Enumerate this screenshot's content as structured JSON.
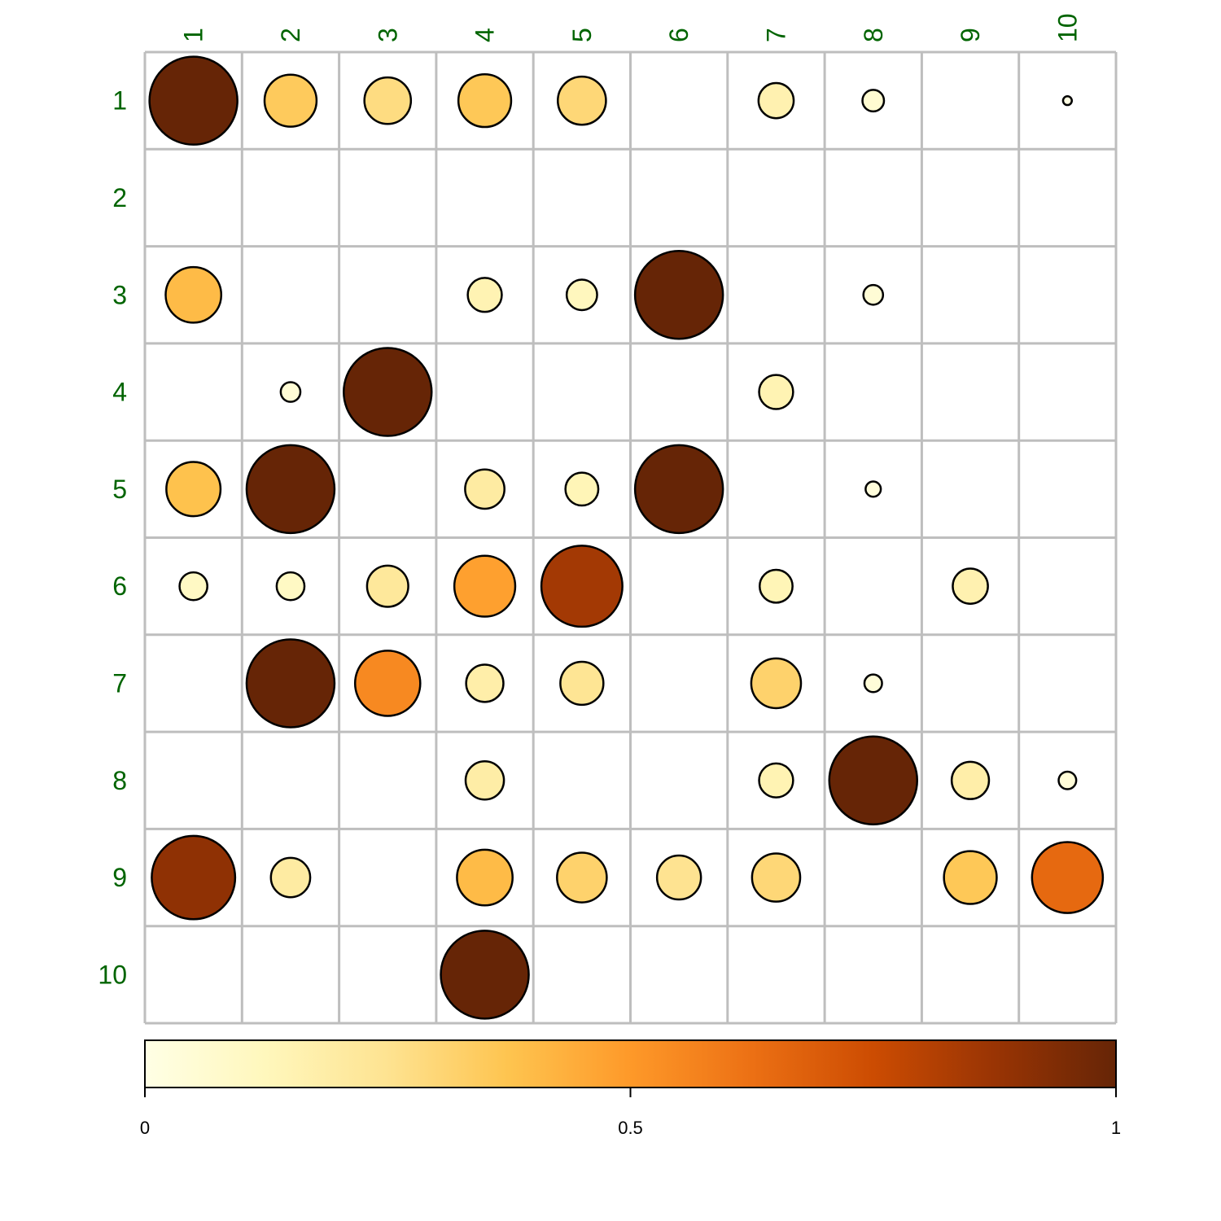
{
  "chart_data": {
    "type": "heatmap",
    "title": "",
    "xlabel": "",
    "ylabel": "",
    "rows": [
      "1",
      "2",
      "3",
      "4",
      "5",
      "6",
      "7",
      "8",
      "9",
      "10"
    ],
    "columns": [
      "1",
      "2",
      "3",
      "4",
      "5",
      "6",
      "7",
      "8",
      "9",
      "10"
    ],
    "values": [
      [
        1.0,
        0.35,
        0.28,
        0.36,
        0.3,
        null,
        0.16,
        0.06,
        null,
        0.01
      ],
      [
        null,
        null,
        null,
        null,
        null,
        null,
        null,
        null,
        null,
        null
      ],
      [
        0.4,
        null,
        null,
        0.15,
        0.12,
        1.0,
        null,
        0.05,
        null,
        null
      ],
      [
        null,
        0.05,
        1.0,
        null,
        null,
        null,
        0.15,
        null,
        null,
        null
      ],
      [
        0.38,
        1.0,
        null,
        0.2,
        0.14,
        1.0,
        null,
        0.03,
        null,
        null
      ],
      [
        0.1,
        0.1,
        0.22,
        0.48,
        0.85,
        null,
        0.14,
        null,
        0.16,
        null
      ],
      [
        null,
        1.0,
        0.55,
        0.18,
        0.24,
        null,
        0.32,
        0.04,
        null,
        null
      ],
      [
        null,
        null,
        null,
        0.19,
        null,
        null,
        0.15,
        1.0,
        0.18,
        0.04
      ],
      [
        0.9,
        0.2,
        null,
        0.4,
        0.32,
        0.25,
        0.3,
        null,
        0.36,
        0.65
      ],
      [
        null,
        null,
        null,
        1.0,
        null,
        null,
        null,
        null,
        null,
        null
      ]
    ],
    "color_scale": {
      "min": 0,
      "max": 1,
      "ticks": [
        "0",
        "0.5",
        "1"
      ],
      "colors": [
        "#FFFFE5",
        "#FFF7BC",
        "#FEE391",
        "#FEC44F",
        "#FE9929",
        "#EC7014",
        "#CC4C02",
        "#993404",
        "#662506"
      ]
    },
    "grid": true,
    "legend": "bottom",
    "label_color": "#006400",
    "grid_color": "#BEBEBE"
  }
}
